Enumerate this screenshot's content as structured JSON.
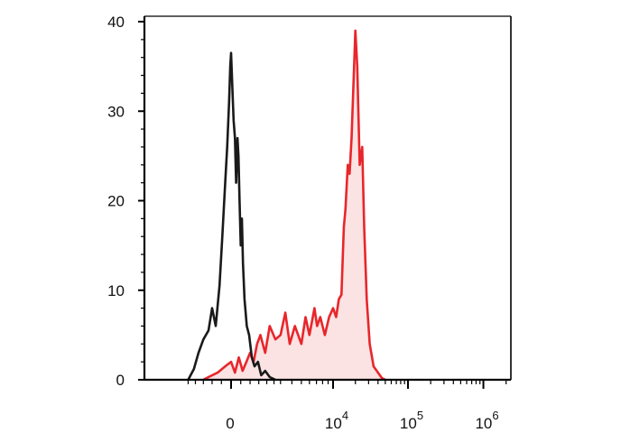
{
  "chart_data": {
    "type": "area",
    "x_scale": "biexponential",
    "ylim": [
      0,
      40
    ],
    "y_ticks": [
      0,
      10,
      20,
      30,
      40
    ],
    "y_tick_labels": [
      "0",
      "10",
      "20",
      "30",
      "40"
    ],
    "x_tick_labels": [
      {
        "base": "0",
        "exp": "",
        "value": 0
      },
      {
        "base": "10",
        "exp": "4",
        "value": 10000
      },
      {
        "base": "10",
        "exp": "5",
        "value": 100000
      },
      {
        "base": "10",
        "exp": "6",
        "value": 1000000
      }
    ],
    "grid": false,
    "legend": "none",
    "title": "",
    "xlabel": "",
    "ylabel": "",
    "series": [
      {
        "color": "#1a1a1a",
        "fill": "none",
        "points": [
          [
            -2500,
            0
          ],
          [
            -2100,
            1.2
          ],
          [
            -1800,
            3
          ],
          [
            -1500,
            4.5
          ],
          [
            -1200,
            5.5
          ],
          [
            -1000,
            8
          ],
          [
            -800,
            6
          ],
          [
            -600,
            10.5
          ],
          [
            -450,
            16
          ],
          [
            -300,
            22
          ],
          [
            -200,
            26
          ],
          [
            -100,
            31
          ],
          [
            -40,
            35
          ],
          [
            0,
            36.5
          ],
          [
            60,
            33
          ],
          [
            130,
            29
          ],
          [
            200,
            27
          ],
          [
            260,
            22
          ],
          [
            330,
            27
          ],
          [
            380,
            25
          ],
          [
            440,
            20
          ],
          [
            500,
            15
          ],
          [
            560,
            18
          ],
          [
            620,
            13
          ],
          [
            700,
            9
          ],
          [
            820,
            6
          ],
          [
            950,
            5
          ],
          [
            1100,
            2.5
          ],
          [
            1250,
            1.5
          ],
          [
            1450,
            2
          ],
          [
            1650,
            0.5
          ],
          [
            1900,
            1
          ],
          [
            2200,
            0.3
          ],
          [
            2600,
            0
          ]
        ]
      },
      {
        "color": "#e8262b",
        "fill": "#fbe3e4",
        "points": [
          [
            -1500,
            0
          ],
          [
            -1200,
            0.3
          ],
          [
            -700,
            0.8
          ],
          [
            -300,
            1.5
          ],
          [
            0,
            2
          ],
          [
            200,
            0.8
          ],
          [
            400,
            2.5
          ],
          [
            600,
            1
          ],
          [
            800,
            2
          ],
          [
            1000,
            3
          ],
          [
            1200,
            2
          ],
          [
            1400,
            4
          ],
          [
            1600,
            5
          ],
          [
            1900,
            3
          ],
          [
            2200,
            6
          ],
          [
            2600,
            4.5
          ],
          [
            3000,
            5
          ],
          [
            3400,
            7.5
          ],
          [
            3800,
            4
          ],
          [
            4300,
            6
          ],
          [
            5000,
            4
          ],
          [
            5500,
            7
          ],
          [
            6000,
            5
          ],
          [
            6700,
            8
          ],
          [
            7100,
            6
          ],
          [
            7600,
            7
          ],
          [
            8400,
            5
          ],
          [
            9200,
            7
          ],
          [
            10000,
            8
          ],
          [
            11000,
            7
          ],
          [
            12000,
            9
          ],
          [
            13000,
            9.5
          ],
          [
            14000,
            17
          ],
          [
            14700,
            19
          ],
          [
            15800,
            24
          ],
          [
            16700,
            23
          ],
          [
            17800,
            27
          ],
          [
            19200,
            35
          ],
          [
            20000,
            39
          ],
          [
            21200,
            35
          ],
          [
            22800,
            24
          ],
          [
            24700,
            26
          ],
          [
            26200,
            17
          ],
          [
            28300,
            9
          ],
          [
            31000,
            4
          ],
          [
            35000,
            1.5
          ],
          [
            40000,
            0.8
          ],
          [
            45000,
            0.2
          ],
          [
            50000,
            0
          ]
        ]
      }
    ]
  }
}
